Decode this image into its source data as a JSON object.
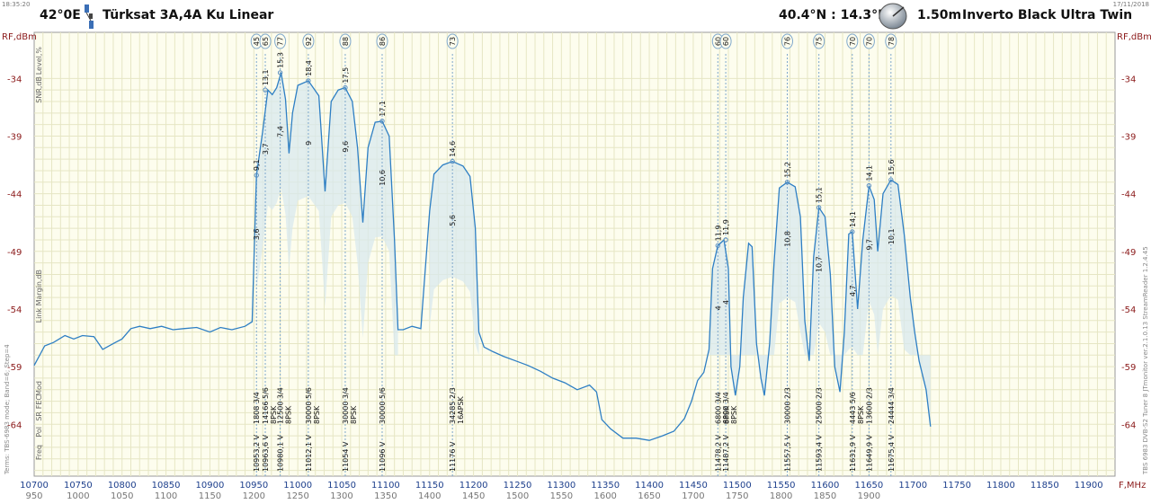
{
  "header": {
    "time": "18:35:20",
    "date": "17/11/2018",
    "orbital_position": "42°0E",
    "satellite_name": "Türksat 3A,4A Ku Linear",
    "site_coords": "40.4°N : 14.3°E",
    "dish": "1.50m",
    "lnb": "Inverto Black Ultra Twin",
    "satellite_icon": "satellite-icon",
    "dish_icon": "dish-icon"
  },
  "side_text": {
    "left": "Terms: TBS-6983 mode; Band=6; Step=4",
    "right": "TBS 6983 DVB-S2 Tuner 8 JTmonitor ver.2.1.0.13 StreamReader 1.2.4.45"
  },
  "chart_data": {
    "type": "line",
    "ylabel_left": "RF,dBm",
    "ylabel_right": "RF,dBm",
    "xlabel": "F,MHz",
    "xlim": [
      10700,
      11930
    ],
    "ylim": [
      -68.5,
      -30
    ],
    "yticks": [
      -34,
      -39,
      -44,
      -49,
      -54,
      -59,
      -64
    ],
    "xticks": [
      10700,
      10750,
      10800,
      10850,
      10900,
      10950,
      11000,
      11050,
      11100,
      11150,
      11200,
      11250,
      11300,
      11350,
      11400,
      11450,
      11500,
      11550,
      11600,
      11650,
      11700,
      11750,
      11800,
      11850,
      11900
    ],
    "xticks_if": [
      950,
      1000,
      1050,
      1100,
      1150,
      1200,
      1250,
      1300,
      1350,
      1400,
      1450,
      1500,
      1550,
      1600,
      1650,
      1700,
      1750,
      1800,
      1850,
      1900
    ],
    "row_labels_top": [
      "Level,%",
      "SNR,dB",
      "Link Margin,dB"
    ],
    "row_labels_bottom": [
      "Mod",
      "FEC",
      "SR",
      "Pol",
      "Freq"
    ],
    "grid": true,
    "series": [
      {
        "points": [
          [
            10700,
            -58.9
          ],
          [
            10712,
            -57.2
          ],
          [
            10722,
            -56.9
          ],
          [
            10735,
            -56.3
          ],
          [
            10745,
            -56.6
          ],
          [
            10755,
            -56.3
          ],
          [
            10768,
            -56.4
          ],
          [
            10778,
            -57.5
          ],
          [
            10790,
            -57.0
          ],
          [
            10800,
            -56.6
          ],
          [
            10810,
            -55.7
          ],
          [
            10820,
            -55.5
          ],
          [
            10832,
            -55.7
          ],
          [
            10845,
            -55.5
          ],
          [
            10858,
            -55.8
          ],
          [
            10870,
            -55.7
          ],
          [
            10885,
            -55.6
          ],
          [
            10900,
            -56.0
          ],
          [
            10912,
            -55.6
          ],
          [
            10925,
            -55.8
          ],
          [
            10940,
            -55.5
          ],
          [
            10948,
            -55.1
          ],
          [
            10953,
            -42.4
          ],
          [
            10960,
            -38.6
          ],
          [
            10966,
            -35.0
          ],
          [
            10971,
            -35.4
          ],
          [
            10976,
            -34.8
          ],
          [
            10981,
            -33.5
          ],
          [
            10986,
            -35.8
          ],
          [
            10990,
            -40.5
          ],
          [
            10994,
            -37.0
          ],
          [
            11000,
            -34.6
          ],
          [
            11012,
            -34.2
          ],
          [
            11024,
            -35.5
          ],
          [
            11031,
            -43.8
          ],
          [
            11038,
            -36.0
          ],
          [
            11046,
            -35.0
          ],
          [
            11054,
            -34.8
          ],
          [
            11062,
            -36.0
          ],
          [
            11068,
            -40.0
          ],
          [
            11074,
            -46.5
          ],
          [
            11080,
            -40.0
          ],
          [
            11088,
            -37.8
          ],
          [
            11096,
            -37.7
          ],
          [
            11104,
            -39.0
          ],
          [
            11110,
            -48.0
          ],
          [
            11114,
            -55.8
          ],
          [
            11120,
            -55.8
          ],
          [
            11130,
            -55.5
          ],
          [
            11140,
            -55.7
          ],
          [
            11150,
            -45.5
          ],
          [
            11155,
            -42.3
          ],
          [
            11165,
            -41.5
          ],
          [
            11176,
            -41.2
          ],
          [
            11188,
            -41.6
          ],
          [
            11196,
            -42.5
          ],
          [
            11202,
            -47.0
          ],
          [
            11206,
            -56.0
          ],
          [
            11212,
            -57.3
          ],
          [
            11222,
            -57.7
          ],
          [
            11234,
            -58.1
          ],
          [
            11248,
            -58.5
          ],
          [
            11262,
            -58.9
          ],
          [
            11276,
            -59.4
          ],
          [
            11290,
            -60.0
          ],
          [
            11304,
            -60.4
          ],
          [
            11318,
            -61.0
          ],
          [
            11332,
            -60.6
          ],
          [
            11340,
            -61.2
          ],
          [
            11346,
            -63.6
          ],
          [
            11356,
            -64.4
          ],
          [
            11370,
            -65.2
          ],
          [
            11385,
            -65.2
          ],
          [
            11400,
            -65.4
          ],
          [
            11415,
            -65.0
          ],
          [
            11428,
            -64.6
          ],
          [
            11440,
            -63.5
          ],
          [
            11448,
            -62.0
          ],
          [
            11455,
            -60.2
          ],
          [
            11462,
            -59.5
          ],
          [
            11468,
            -57.5
          ],
          [
            11472,
            -50.5
          ],
          [
            11478,
            -48.5
          ],
          [
            11485,
            -48.0
          ],
          [
            11490,
            -50.5
          ],
          [
            11493,
            -59.0
          ],
          [
            11498,
            -61.5
          ],
          [
            11503,
            -59.0
          ],
          [
            11507,
            -53.0
          ],
          [
            11513,
            -48.3
          ],
          [
            11517,
            -48.6
          ],
          [
            11522,
            -57.0
          ],
          [
            11527,
            -60.0
          ],
          [
            11531,
            -61.5
          ],
          [
            11537,
            -57.0
          ],
          [
            11542,
            -50.0
          ],
          [
            11548,
            -43.5
          ],
          [
            11557,
            -43.0
          ],
          [
            11566,
            -43.4
          ],
          [
            11572,
            -46.0
          ],
          [
            11577,
            -55.0
          ],
          [
            11582,
            -58.5
          ],
          [
            11587,
            -49.5
          ],
          [
            11593,
            -45.2
          ],
          [
            11600,
            -46.0
          ],
          [
            11606,
            -51.0
          ],
          [
            11611,
            -59.0
          ],
          [
            11617,
            -61.2
          ],
          [
            11622,
            -56.0
          ],
          [
            11627,
            -47.5
          ],
          [
            11631,
            -47.3
          ],
          [
            11637,
            -54.0
          ],
          [
            11643,
            -48.0
          ],
          [
            11650,
            -43.3
          ],
          [
            11656,
            -44.5
          ],
          [
            11660,
            -49.0
          ],
          [
            11666,
            -44.0
          ],
          [
            11675,
            -42.8
          ],
          [
            11683,
            -43.2
          ],
          [
            11690,
            -47.5
          ],
          [
            11697,
            -53.0
          ],
          [
            11702,
            -56.0
          ],
          [
            11707,
            -58.5
          ],
          [
            11715,
            -61.0
          ],
          [
            11720,
            -64.2
          ]
        ]
      }
    ],
    "transponders": [
      {
        "freq_label": "10953,2 V",
        "sr_fec": "1808 3/4",
        "mod": "",
        "level": "45",
        "snr": "9,1",
        "margin": "3,6",
        "f": 10953,
        "rf": -42.4
      },
      {
        "freq_label": "10963,6 V",
        "sr_fec": "14166 5/6",
        "mod": "8PSK",
        "level": "65",
        "snr": "13,1",
        "margin": "3,7",
        "f": 10963,
        "rf": -35.0
      },
      {
        "freq_label": "10980,1 V",
        "sr_fec": "12500 3/4",
        "mod": "8PSK",
        "level": "77",
        "snr": "15,3",
        "margin": "7,4",
        "f": 10980,
        "rf": -33.5
      },
      {
        "freq_label": "11012,1 V",
        "sr_fec": "30000 5/6",
        "mod": "8PSK",
        "level": "92",
        "snr": "18,4",
        "margin": "9",
        "f": 11012,
        "rf": -34.2
      },
      {
        "freq_label": "11054 V",
        "sr_fec": "30000 3/4",
        "mod": "8PSK",
        "level": "88",
        "snr": "17,5",
        "margin": "9,6",
        "f": 11054,
        "rf": -34.8
      },
      {
        "freq_label": "11096 V",
        "sr_fec": "30000 5/6",
        "mod": "",
        "level": "86",
        "snr": "17,1",
        "margin": "10,6",
        "f": 11096,
        "rf": -37.7
      },
      {
        "freq_label": "11176 V",
        "sr_fec": "34285 2/3",
        "mod": "16APSK",
        "level": "73",
        "snr": "14,6",
        "margin": "5,6",
        "f": 11176,
        "rf": -41.2
      },
      {
        "freq_label": "11478,2 V",
        "sr_fec": "6800 3/4",
        "mod": "8PSK",
        "level": "60",
        "snr": "11,9",
        "margin": "4",
        "f": 11478,
        "rf": -48.5
      },
      {
        "freq_label": "11487,2 V",
        "sr_fec": "6800 3/4",
        "mod": "8PSK",
        "level": "60",
        "snr": "11,9",
        "margin": "4",
        "f": 11487,
        "rf": -48.0
      },
      {
        "freq_label": "11557,5 V",
        "sr_fec": "30000 2/3",
        "mod": "",
        "level": "76",
        "snr": "15,2",
        "margin": "10,8",
        "f": 11557,
        "rf": -43.0
      },
      {
        "freq_label": "11593,4 V",
        "sr_fec": "25000 2/3",
        "mod": "",
        "level": "75",
        "snr": "15,1",
        "margin": "10,7",
        "f": 11593,
        "rf": -45.2
      },
      {
        "freq_label": "11631,9 V",
        "sr_fec": "4443 5/6",
        "mod": "8PSK",
        "level": "70",
        "snr": "14,1",
        "margin": "4,7",
        "f": 11631,
        "rf": -47.3
      },
      {
        "freq_label": "11649,9 V",
        "sr_fec": "13600 2/3",
        "mod": "",
        "level": "70",
        "snr": "14,1",
        "margin": "9,7",
        "f": 11650,
        "rf": -43.3
      },
      {
        "freq_label": "11675,4 V",
        "sr_fec": "24444 3/4",
        "mod": "",
        "level": "78",
        "snr": "15,6",
        "margin": "10,1",
        "f": 11675,
        "rf": -42.8
      }
    ],
    "colors": {
      "plot_bg": "#fdfdee",
      "grid": "#e6e6c4",
      "trace": "#2e7fc4",
      "fill": "#d8e8ee",
      "axis_text": "#8b1a1a",
      "marker": "#5b8fc0"
    }
  }
}
